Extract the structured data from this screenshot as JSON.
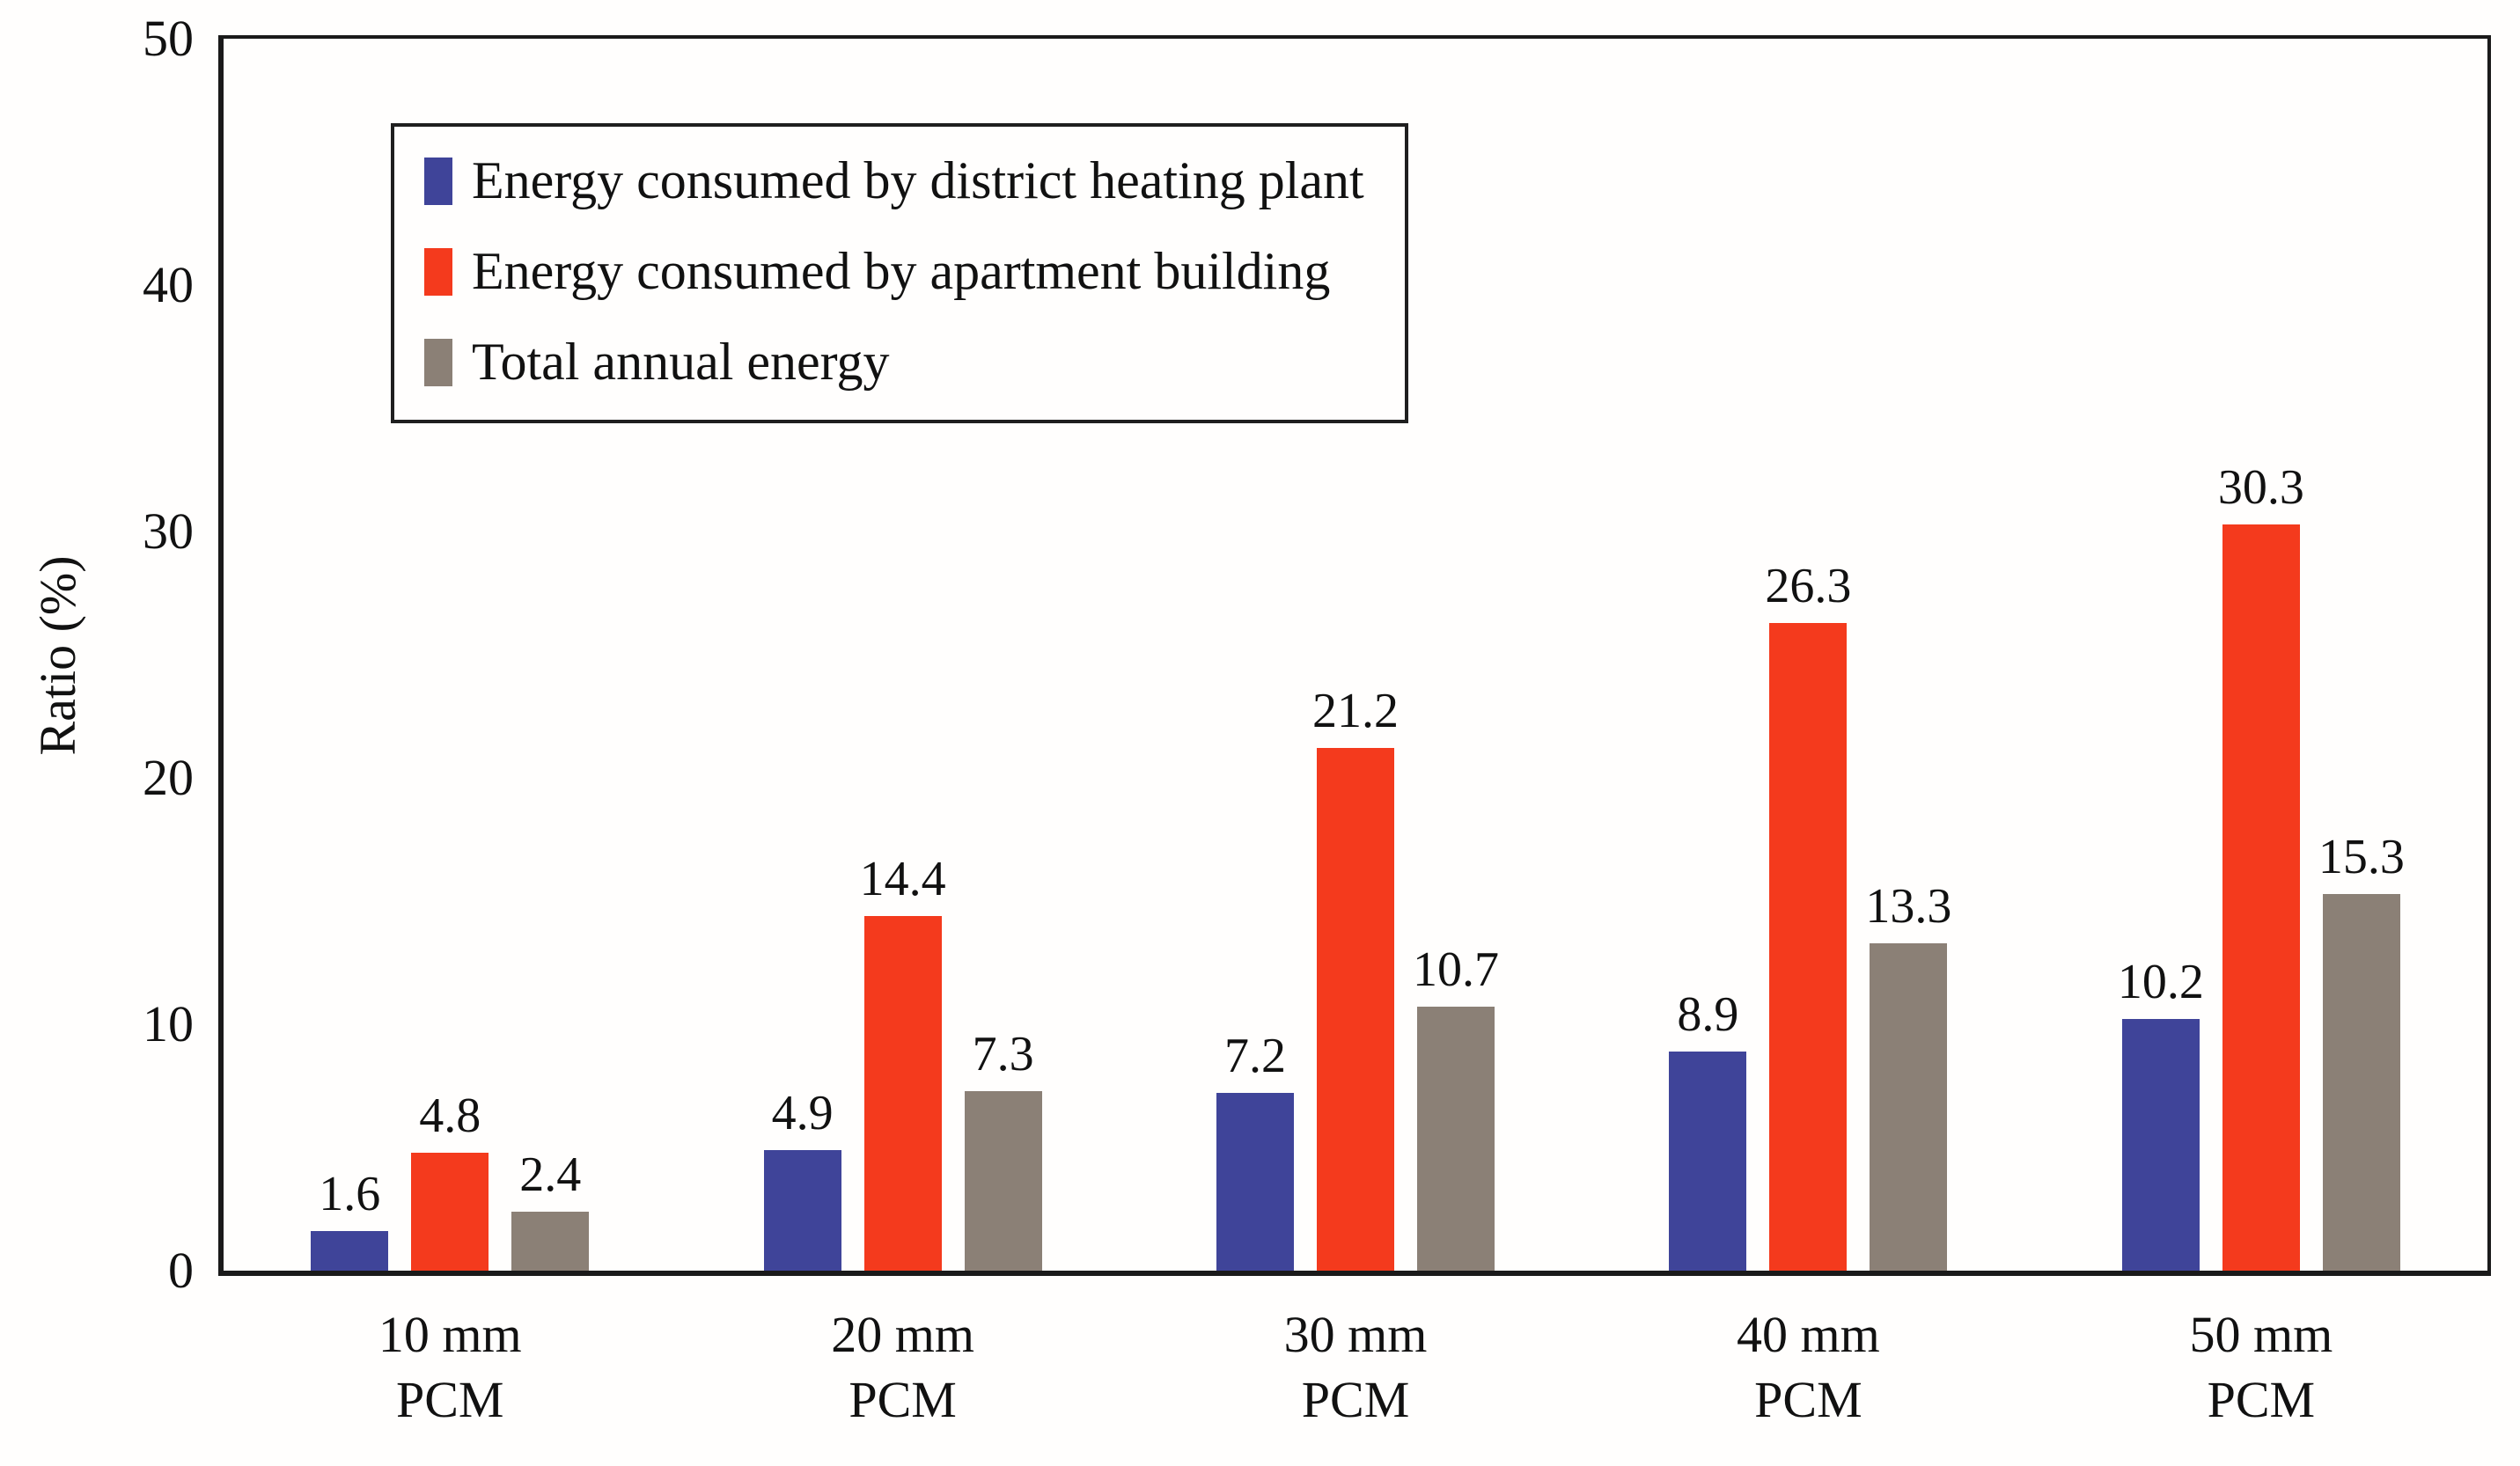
{
  "chart_data": {
    "type": "bar",
    "title": "",
    "xlabel": "",
    "ylabel": "Ratio (%)",
    "ylim": [
      0,
      50
    ],
    "ytick_step": 10,
    "grid": false,
    "legend_position": "top-left",
    "value_label_decimals": 1,
    "categories": [
      "10 mm\nPCM",
      "20 mm\nPCM",
      "30 mm\nPCM",
      "40 mm\nPCM",
      "50 mm\nPCM"
    ],
    "series": [
      {
        "name": "Energy consumed by district heating plant",
        "color": "#3F4499",
        "values": [
          1.6,
          4.9,
          7.2,
          8.9,
          10.2
        ]
      },
      {
        "name": "Energy consumed by apartment building",
        "color": "#F43A1D",
        "values": [
          4.8,
          14.4,
          21.2,
          26.3,
          30.3
        ]
      },
      {
        "name": "Total annual energy",
        "color": "#8B8076",
        "values": [
          2.4,
          7.3,
          10.7,
          13.3,
          15.3
        ]
      }
    ],
    "colors": {
      "axis": "#1a1a1a",
      "text": "#111111",
      "background": "#fffefd"
    }
  }
}
